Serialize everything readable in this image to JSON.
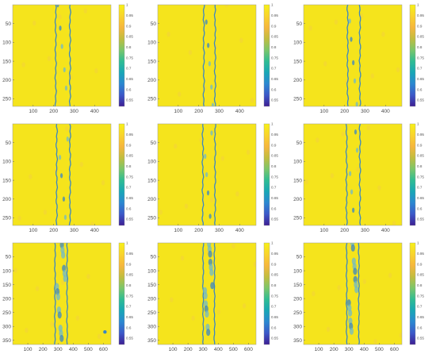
{
  "chart_data": [
    {
      "type": "heatmap",
      "row": 1,
      "col": 1,
      "xlim": [
        0,
        480
      ],
      "ylim": [
        0,
        270
      ],
      "x_ticks": [
        "100",
        "200",
        "300",
        "400"
      ],
      "y_ticks": [
        "50",
        "100",
        "150",
        "200",
        "250"
      ],
      "band_x": [
        210,
        280
      ],
      "colorbar": {
        "range": [
          0.52,
          1
        ],
        "ticks": [
          "1",
          "0.95",
          "0.9",
          "0.85",
          "0.8",
          "0.75",
          "0.7",
          "0.65",
          "0.6",
          "0.55"
        ]
      }
    },
    {
      "type": "heatmap",
      "row": 1,
      "col": 2,
      "xlim": [
        0,
        480
      ],
      "ylim": [
        0,
        270
      ],
      "x_ticks": [
        "100",
        "200",
        "300",
        "400"
      ],
      "y_ticks": [
        "50",
        "100",
        "150",
        "200",
        "250"
      ],
      "band_x": [
        225,
        280
      ],
      "colorbar": {
        "range": [
          0.52,
          1
        ],
        "ticks": [
          "1",
          "0.95",
          "0.9",
          "0.85",
          "0.8",
          "0.75",
          "0.7",
          "0.65",
          "0.6",
          "0.55"
        ]
      }
    },
    {
      "type": "heatmap",
      "row": 1,
      "col": 3,
      "xlim": [
        0,
        480
      ],
      "ylim": [
        0,
        270
      ],
      "x_ticks": [
        "100",
        "200",
        "300",
        "400"
      ],
      "y_ticks": [
        "50",
        "100",
        "150",
        "200",
        "250"
      ],
      "band_x": [
        215,
        275
      ],
      "colorbar": {
        "range": [
          0.52,
          1
        ],
        "ticks": [
          "1",
          "0.95",
          "0.9",
          "0.85",
          "0.8",
          "0.75",
          "0.7",
          "0.65",
          "0.6",
          "0.55"
        ]
      }
    },
    {
      "type": "heatmap",
      "row": 2,
      "col": 1,
      "xlim": [
        0,
        480
      ],
      "ylim": [
        0,
        270
      ],
      "x_ticks": [
        "100",
        "200",
        "300",
        "400"
      ],
      "y_ticks": [
        "50",
        "100",
        "150",
        "200",
        "250"
      ],
      "band_x": [
        215,
        280
      ],
      "colorbar": {
        "range": [
          0.52,
          1
        ],
        "ticks": [
          "1",
          "0.95",
          "0.9",
          "0.85",
          "0.8",
          "0.75",
          "0.7",
          "0.65",
          "0.6",
          "0.55"
        ]
      }
    },
    {
      "type": "heatmap",
      "row": 2,
      "col": 2,
      "xlim": [
        0,
        480
      ],
      "ylim": [
        0,
        270
      ],
      "x_ticks": [
        "100",
        "200",
        "300",
        "400"
      ],
      "y_ticks": [
        "50",
        "100",
        "150",
        "200",
        "250"
      ],
      "band_x": [
        220,
        280
      ],
      "colorbar": {
        "range": [
          0.52,
          1
        ],
        "ticks": [
          "1",
          "0.95",
          "0.9",
          "0.85",
          "0.8",
          "0.75",
          "0.7",
          "0.65",
          "0.6",
          "0.55"
        ]
      }
    },
    {
      "type": "heatmap",
      "row": 2,
      "col": 3,
      "xlim": [
        0,
        480
      ],
      "ylim": [
        0,
        270
      ],
      "x_ticks": [
        "100",
        "200",
        "300",
        "400"
      ],
      "y_ticks": [
        "50",
        "100",
        "150",
        "200",
        "250"
      ],
      "band_x": [
        210,
        275
      ],
      "colorbar": {
        "range": [
          0.52,
          1
        ],
        "ticks": [
          "1",
          "0.95",
          "0.9",
          "0.85",
          "0.8",
          "0.75",
          "0.7",
          "0.65",
          "0.6",
          "0.55"
        ]
      }
    },
    {
      "type": "heatmap",
      "row": 3,
      "col": 1,
      "xlim": [
        0,
        650
      ],
      "ylim": [
        0,
        365
      ],
      "x_ticks": [
        "100",
        "200",
        "300",
        "400",
        "500",
        "600"
      ],
      "y_ticks": [
        "50",
        "100",
        "150",
        "200",
        "250",
        "300",
        "350"
      ],
      "band_x": [
        280,
        360
      ],
      "spot": [
        610,
        320
      ],
      "colorbar": {
        "range": [
          0.52,
          1
        ],
        "ticks": [
          "1",
          "0.95",
          "0.9",
          "0.85",
          "0.8",
          "0.75",
          "0.7",
          "0.65",
          "0.6",
          "0.55"
        ]
      }
    },
    {
      "type": "heatmap",
      "row": 3,
      "col": 2,
      "xlim": [
        0,
        650
      ],
      "ylim": [
        0,
        365
      ],
      "x_ticks": [
        "100",
        "200",
        "300",
        "400",
        "500",
        "600"
      ],
      "y_ticks": [
        "50",
        "100",
        "150",
        "200",
        "250",
        "300",
        "350"
      ],
      "band_x": [
        300,
        375
      ],
      "colorbar": {
        "range": [
          0.52,
          1
        ],
        "ticks": [
          "1",
          "0.95",
          "0.9",
          "0.85",
          "0.8",
          "0.75",
          "0.7",
          "0.65",
          "0.6",
          "0.55"
        ]
      }
    },
    {
      "type": "heatmap",
      "row": 3,
      "col": 3,
      "xlim": [
        0,
        650
      ],
      "ylim": [
        0,
        365
      ],
      "x_ticks": [
        "100",
        "200",
        "300",
        "400",
        "500",
        "600"
      ],
      "y_ticks": [
        "50",
        "100",
        "150",
        "200",
        "250",
        "300",
        "350"
      ],
      "band_x": [
        285,
        365
      ],
      "colorbar": {
        "range": [
          0.52,
          1
        ],
        "ticks": [
          "1",
          "0.95",
          "0.9",
          "0.85",
          "0.8",
          "0.75",
          "0.7",
          "0.65",
          "0.6",
          "0.55"
        ]
      }
    }
  ],
  "colors": {
    "background_field": "#f5e41c",
    "edge": "#3a86c4",
    "dip": "#6fb9c9",
    "colormap": [
      "#3d1f93",
      "#3c58c8",
      "#2b87d1",
      "#18a7b6",
      "#2fbd93",
      "#7cc66a",
      "#c2bd3f",
      "#f6b73d",
      "#f9d42c",
      "#f7f016"
    ]
  }
}
